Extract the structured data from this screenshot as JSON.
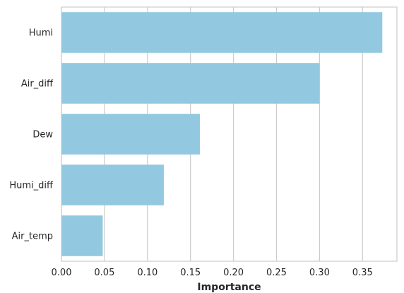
{
  "chart_data": {
    "type": "bar",
    "orientation": "horizontal",
    "categories": [
      "Humi",
      "Air_diff",
      "Dew",
      "Humi_diff",
      "Air_temp"
    ],
    "values": [
      0.373,
      0.3,
      0.161,
      0.119,
      0.048
    ],
    "xlabel": "Importance",
    "ylabel": "",
    "xlim": [
      0,
      0.39
    ],
    "xticks": [
      0.0,
      0.05,
      0.1,
      0.15,
      0.2,
      0.25,
      0.3,
      0.35
    ],
    "xtick_labels": [
      "0.00",
      "0.05",
      "0.10",
      "0.15",
      "0.20",
      "0.25",
      "0.30",
      "0.35"
    ],
    "grid": "vertical",
    "bar_color": "#92c9e0"
  }
}
